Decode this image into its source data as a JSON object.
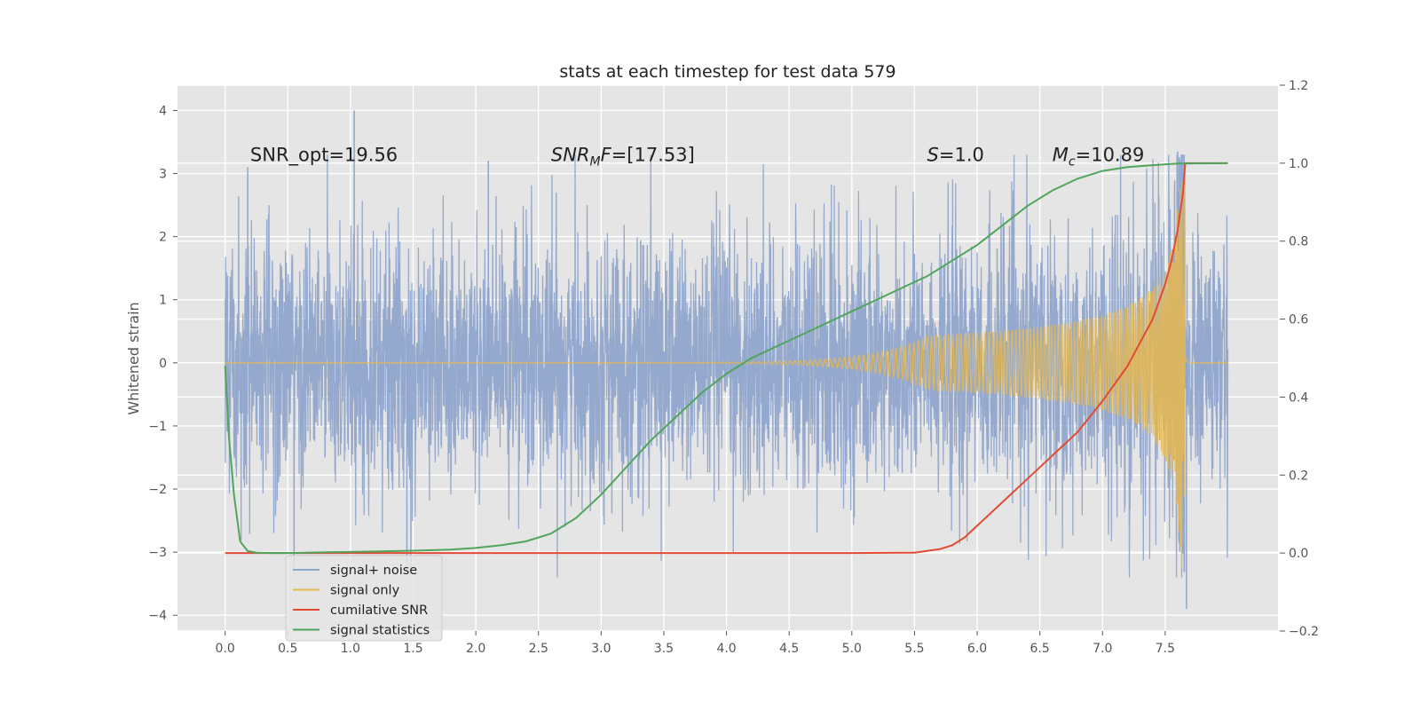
{
  "chart_data": {
    "type": "line",
    "title": "stats at each timestep for test data 579",
    "ylabel": "Whitened strain",
    "xlabel": "",
    "xlim": [
      -0.38,
      8.4
    ],
    "ylim": [
      -4.25,
      4.4
    ],
    "y2lim": [
      -0.2,
      1.2
    ],
    "grid": true,
    "legend_position": "lower-left",
    "x_ticks": [
      "0.0",
      "0.5",
      "1.0",
      "1.5",
      "2.0",
      "2.5",
      "3.0",
      "3.5",
      "4.0",
      "4.5",
      "5.0",
      "5.5",
      "6.0",
      "6.5",
      "7.0",
      "7.5"
    ],
    "y_ticks": [
      "4",
      "3",
      "2",
      "1",
      "0",
      "−1",
      "−2",
      "−3",
      "−4"
    ],
    "y2_ticks": [
      "1.2",
      "1.0",
      "0.8",
      "0.6",
      "0.4",
      "0.2",
      "0.0",
      "−0.2"
    ],
    "annotations": [
      {
        "id": "snr-opt",
        "text": "SNR_opt=19.56",
        "x": 0.2,
        "y": 3.2
      },
      {
        "id": "snr-mf",
        "text": "SNR",
        "sub": "M",
        "tail": "F=[17.53]",
        "x": 2.6,
        "y": 3.2
      },
      {
        "id": "s-value",
        "text": "S",
        "tail": "=1.0",
        "x": 5.6,
        "y": 3.2
      },
      {
        "id": "chirp-mass",
        "text": "M",
        "sub": "c",
        "tail": "=10.89",
        "x": 6.6,
        "y": 3.2
      }
    ],
    "series": [
      {
        "name": "signal+ noise",
        "axis": "left",
        "color": "#8fa5cb",
        "description_values": {
          "t_range": [
            0,
            8
          ],
          "noise_sigma": 1.0,
          "max": 4.0,
          "min": -3.9
        },
        "peaks": [
          [
            1.03,
            4.0
          ],
          [
            0.18,
            3.1
          ],
          [
            2.1,
            3.2
          ],
          [
            7.6,
            3.35
          ],
          [
            7.67,
            -3.9
          ],
          [
            1.45,
            -3.3
          ],
          [
            0.55,
            -3.35
          ]
        ]
      },
      {
        "name": "signal only",
        "axis": "left",
        "color": "#e8b84f",
        "chirp": {
          "t_merge": 7.66,
          "t_end": 8.0,
          "start_visible": 5.5,
          "peak_amp": 3.3,
          "ringdown_amp_max": -2.2
        }
      },
      {
        "name": "cumilative SNR",
        "axis": "right",
        "color": "#e24a33",
        "x": [
          0,
          1,
          2,
          3,
          4,
          5,
          5.5,
          5.7,
          5.8,
          5.9,
          6.0,
          6.1,
          6.2,
          6.4,
          6.6,
          6.8,
          7.0,
          7.2,
          7.4,
          7.5,
          7.55,
          7.6,
          7.64,
          7.66,
          8.0
        ],
        "values": [
          0.0,
          0.0,
          0.0,
          0.0,
          0.0,
          0.0,
          0.001,
          0.01,
          0.02,
          0.04,
          0.07,
          0.1,
          0.13,
          0.19,
          0.25,
          0.31,
          0.39,
          0.48,
          0.6,
          0.69,
          0.75,
          0.83,
          0.92,
          1.0,
          1.0
        ]
      },
      {
        "name": "signal statistics",
        "axis": "right",
        "color": "#4fa55b",
        "x": [
          0,
          0.03,
          0.07,
          0.12,
          0.18,
          0.25,
          0.35,
          0.5,
          0.8,
          1.2,
          1.5,
          1.8,
          2.0,
          2.2,
          2.4,
          2.6,
          2.8,
          3.0,
          3.2,
          3.4,
          3.6,
          3.8,
          4.0,
          4.2,
          4.4,
          4.6,
          4.8,
          5.0,
          5.2,
          5.4,
          5.6,
          5.8,
          6.0,
          6.2,
          6.4,
          6.6,
          6.8,
          7.0,
          7.2,
          7.4,
          7.6,
          8.0
        ],
        "values": [
          0.48,
          0.3,
          0.15,
          0.03,
          0.005,
          0.001,
          0.0,
          0.0,
          0.002,
          0.004,
          0.006,
          0.009,
          0.013,
          0.02,
          0.03,
          0.05,
          0.09,
          0.15,
          0.22,
          0.29,
          0.35,
          0.41,
          0.46,
          0.5,
          0.53,
          0.56,
          0.59,
          0.62,
          0.65,
          0.68,
          0.71,
          0.75,
          0.79,
          0.84,
          0.89,
          0.93,
          0.96,
          0.98,
          0.99,
          0.995,
          0.999,
          1.0
        ]
      }
    ]
  }
}
